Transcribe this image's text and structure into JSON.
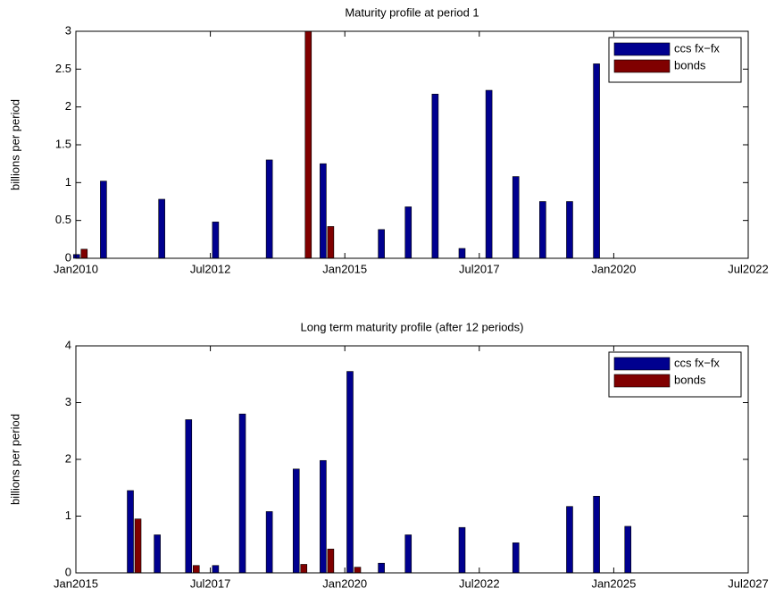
{
  "chart_data": [
    {
      "type": "bar",
      "title": "Maturity profile at period 1",
      "ylabel": "billions per period",
      "x": [
        "2010-02",
        "2010-08",
        "2011-09",
        "2012-09",
        "2013-09",
        "2014-04",
        "2014-09",
        "2015-10",
        "2016-04",
        "2016-10",
        "2017-04",
        "2017-10",
        "2018-04",
        "2018-10",
        "2019-04",
        "2019-10"
      ],
      "series": [
        {
          "name": "ccs fx−fx",
          "color": "#00008f",
          "values": [
            0.05,
            1.02,
            0.78,
            0.48,
            1.3,
            0,
            1.25,
            0.38,
            0.68,
            2.17,
            0.13,
            2.22,
            1.08,
            0.75,
            0.75,
            2.57
          ]
        },
        {
          "name": "bonds",
          "color": "#800000",
          "values": [
            0.12,
            0,
            0,
            0,
            0,
            3.0,
            0.42,
            0,
            0,
            0,
            0,
            0,
            0,
            0,
            0,
            0
          ]
        }
      ],
      "xlim": [
        "2010-01",
        "2022-07"
      ],
      "xticks": [
        {
          "value": "2010-01",
          "label": "Jan2010"
        },
        {
          "value": "2012-07",
          "label": "Jul2012"
        },
        {
          "value": "2015-01",
          "label": "Jan2015"
        },
        {
          "value": "2017-07",
          "label": "Jul2017"
        },
        {
          "value": "2020-01",
          "label": "Jan2020"
        },
        {
          "value": "2022-07",
          "label": "Jul2022"
        }
      ],
      "ylim": [
        0,
        3
      ],
      "yticks": [
        0,
        0.5,
        1,
        1.5,
        2,
        2.5,
        3
      ],
      "legend": "northeast"
    },
    {
      "type": "bar",
      "title": "Long term maturity profile (after 12 periods)",
      "ylabel": "billions per period",
      "x": [
        "2016-02",
        "2016-08",
        "2017-03",
        "2017-09",
        "2018-03",
        "2018-09",
        "2019-03",
        "2019-09",
        "2020-03",
        "2020-10",
        "2021-04",
        "2022-04",
        "2023-04",
        "2024-04",
        "2024-10",
        "2025-05"
      ],
      "series": [
        {
          "name": "ccs fx−fx",
          "color": "#00008f",
          "values": [
            1.45,
            0.67,
            2.7,
            0.13,
            2.8,
            1.08,
            1.83,
            1.98,
            3.55,
            0.17,
            0.67,
            0.8,
            0.53,
            1.17,
            1.35,
            0.82
          ]
        },
        {
          "name": "bonds",
          "color": "#800000",
          "values": [
            0.95,
            0,
            0.13,
            0,
            0,
            0,
            0.15,
            0.42,
            0.1,
            0,
            0,
            0,
            0,
            0,
            0,
            0
          ]
        }
      ],
      "xlim": [
        "2015-01",
        "2027-07"
      ],
      "xticks": [
        {
          "value": "2015-01",
          "label": "Jan2015"
        },
        {
          "value": "2017-07",
          "label": "Jul2017"
        },
        {
          "value": "2020-01",
          "label": "Jan2020"
        },
        {
          "value": "2022-07",
          "label": "Jul2022"
        },
        {
          "value": "2025-01",
          "label": "Jan2025"
        },
        {
          "value": "2027-07",
          "label": "Jul2027"
        }
      ],
      "ylim": [
        0,
        4
      ],
      "yticks": [
        0,
        1,
        2,
        3,
        4
      ],
      "legend": "northeast"
    }
  ]
}
